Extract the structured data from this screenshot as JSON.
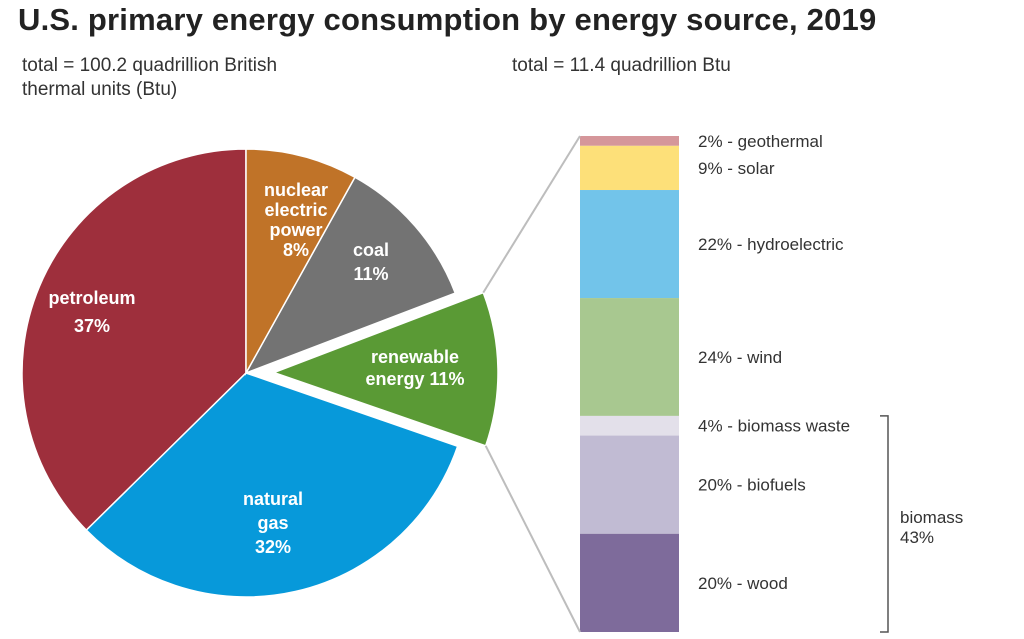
{
  "chart_data": [
    {
      "type": "pie",
      "title": "U.S. primary energy consumption by energy source, 2019",
      "total_label": "total = 100.2 quadrillion British thermal units (Btu)",
      "slices": [
        {
          "name": "petroleum",
          "label_lines": [
            "petroleum",
            "37%"
          ],
          "value": 37,
          "color": "#9e2f3c"
        },
        {
          "name": "natural-gas",
          "label_lines": [
            "natural",
            "gas",
            "32%"
          ],
          "value": 32,
          "color": "#0799da"
        },
        {
          "name": "renewable-energy",
          "label_lines": [
            "renewable",
            "energy 11%"
          ],
          "value": 11,
          "color": "#5a9a35",
          "exploded": true
        },
        {
          "name": "coal",
          "label_lines": [
            "coal",
            "11%"
          ],
          "value": 11,
          "color": "#737373"
        },
        {
          "name": "nuclear-electric-power",
          "label_lines": [
            "nuclear",
            "electric",
            "power",
            "8%"
          ],
          "value": 8,
          "color": "#c07328"
        }
      ]
    },
    {
      "type": "bar",
      "subtype": "stacked-100",
      "total_label": "total = 11.4 quadrillion Btu",
      "segments": [
        {
          "name": "geothermal",
          "label": "2% - geothermal",
          "value": 2,
          "color": "#d5969a"
        },
        {
          "name": "solar",
          "label": "9% - solar",
          "value": 9,
          "color": "#fde079"
        },
        {
          "name": "hydroelectric",
          "label": "22% - hydroelectric",
          "value": 22,
          "color": "#72c4ea"
        },
        {
          "name": "wind",
          "label": "24% - wind",
          "value": 24,
          "color": "#a8c890"
        },
        {
          "name": "biomass-waste",
          "label": "4% - biomass waste",
          "value": 4,
          "color": "#e3e0ea"
        },
        {
          "name": "biofuels",
          "label": "20% - biofuels",
          "value": 20,
          "color": "#c1bbd3"
        },
        {
          "name": "wood",
          "label": "20% - wood",
          "value": 20,
          "color": "#7e6b9b"
        }
      ],
      "bracket": {
        "label": "biomass",
        "value_label": "43%",
        "value": 43,
        "covers": [
          "biomass-waste",
          "biofuels",
          "wood"
        ]
      }
    }
  ]
}
